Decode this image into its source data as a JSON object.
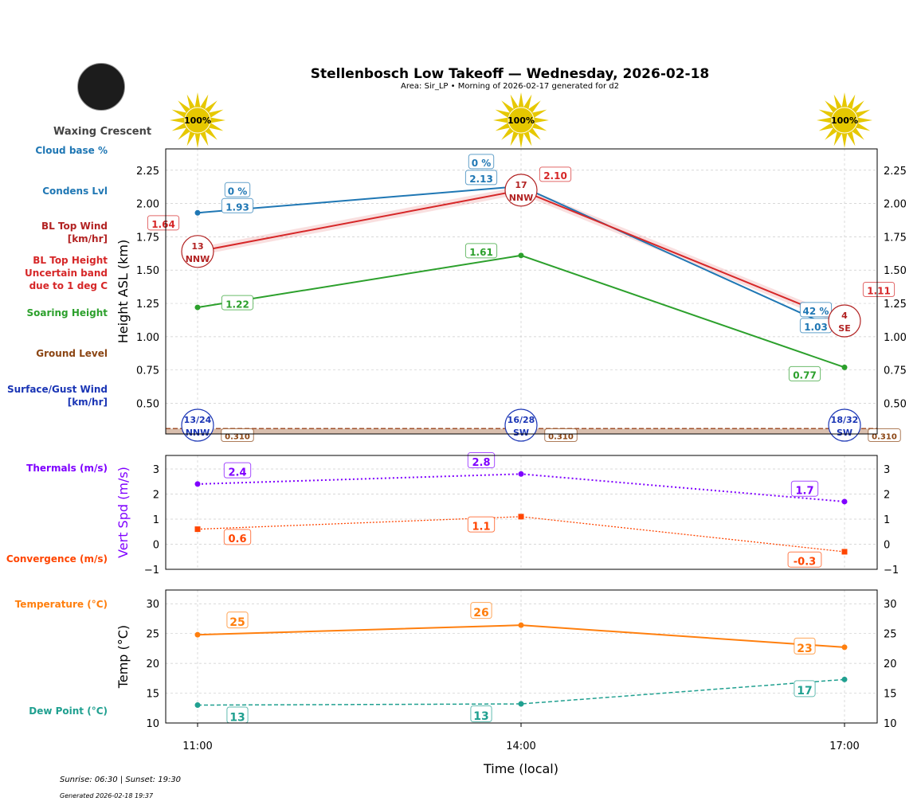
{
  "header": {
    "title": "Stellenbosch Low Takeoff — Wednesday, 2026-02-18",
    "subtitle": "Area: Sir_LP • Morning of 2026-02-17 generated for d2",
    "moon_phase": "Waxing Crescent"
  },
  "left_labels": [
    {
      "text": "Cloud base %",
      "color": "#1f77b4"
    },
    {
      "text": "Condens Lvl",
      "color": "#1f77b4"
    },
    {
      "text": "BL Top Wind\n[km/hr]",
      "color": "#b22222"
    },
    {
      "text": "BL Top Height\nUncertain band\ndue to 1 deg C",
      "color": "#d62728"
    },
    {
      "text": "Soaring Height",
      "color": "#2ca02c"
    },
    {
      "text": "Ground Level",
      "color": "#8b4513"
    },
    {
      "text": "Surface/Gust Wind\n[km/hr]",
      "color": "#1a35b5"
    },
    {
      "text": "Thermals (m/s)",
      "color": "#7f00ff"
    },
    {
      "text": "Convergence (m/s)",
      "color": "#ff4500"
    },
    {
      "text": "Temperature (°C)",
      "color": "#ff7f0e"
    },
    {
      "text": "Dew Point (°C)",
      "color": "#20a090"
    }
  ],
  "footer": {
    "sun": "Sunrise: 06:30 | Sunset: 19:30",
    "generated": "Generated 2026-02-18 19:37"
  },
  "chart_data": [
    {
      "type": "line",
      "panel": "height",
      "ylabel": "Height ASL (km)",
      "xlabel": "",
      "ylim": [
        0.27,
        2.41
      ],
      "yticks": [
        "0.50",
        "0.75",
        "1.00",
        "1.25",
        "1.50",
        "1.75",
        "2.00",
        "2.25"
      ],
      "grid": true,
      "x": [
        "11:00",
        "14:00",
        "17:00"
      ],
      "sun_percent": [
        "100%",
        "100%",
        "100%"
      ],
      "series": [
        {
          "key": "condens",
          "values": [
            1.93,
            2.13,
            1.03
          ],
          "labels": [
            "1.93",
            "2.13",
            "1.03"
          ],
          "color": "#1f77b4"
        },
        {
          "key": "cloud_pct",
          "labels": [
            "0 %",
            "0 %",
            "42 %"
          ],
          "color": "#1f77b4"
        },
        {
          "key": "bl_top",
          "values": [
            1.64,
            2.1,
            1.11
          ],
          "labels": [
            "1.64",
            "2.10",
            "1.11"
          ],
          "band": 0.03,
          "color": "#d62728"
        },
        {
          "key": "soaring",
          "values": [
            1.22,
            1.61,
            0.77
          ],
          "labels": [
            "1.22",
            "1.61",
            "0.77"
          ],
          "color": "#2ca02c"
        },
        {
          "key": "ground",
          "values": [
            0.31,
            0.31,
            0.31
          ],
          "labels": [
            "0.310",
            "0.310",
            "0.310"
          ],
          "color": "#8b4513"
        }
      ],
      "bl_wind": [
        {
          "speed": "13",
          "dir": "NNW"
        },
        {
          "speed": "17",
          "dir": "NNW"
        },
        {
          "speed": "4",
          "dir": "SE"
        }
      ],
      "surface_wind": [
        {
          "speed": "13/24",
          "dir": "NNW"
        },
        {
          "speed": "16/28",
          "dir": "SW"
        },
        {
          "speed": "18/32",
          "dir": "SW"
        }
      ]
    },
    {
      "type": "line",
      "panel": "vertical",
      "ylabel": "Vert Spd (m/s)",
      "ylim": [
        -1,
        3.54
      ],
      "yticks": [
        "−1",
        "0",
        "1",
        "2",
        "3"
      ],
      "grid": true,
      "series": [
        {
          "key": "thermals",
          "values": [
            2.4,
            2.8,
            1.7
          ],
          "labels": [
            "2.4",
            "2.8",
            "1.7"
          ],
          "color": "#7f00ff"
        },
        {
          "key": "convergence",
          "values": [
            0.6,
            1.1,
            -0.3
          ],
          "labels": [
            "0.6",
            "1.1",
            "-0.3"
          ],
          "color": "#ff4500"
        }
      ]
    },
    {
      "type": "line",
      "panel": "temp",
      "ylabel": "Temp (°C)",
      "xlabel": "Time (local)",
      "ylim": [
        10,
        32.3
      ],
      "yticks": [
        "10",
        "15",
        "20",
        "25",
        "30"
      ],
      "xticks": [
        "11:00",
        "14:00",
        "17:00"
      ],
      "grid": true,
      "series": [
        {
          "key": "temperature",
          "values": [
            24.8,
            26.4,
            22.7
          ],
          "labels": [
            "25",
            "26",
            "23"
          ],
          "color": "#ff7f0e"
        },
        {
          "key": "dewpoint",
          "values": [
            13.0,
            13.2,
            17.3
          ],
          "labels": [
            "13",
            "13",
            "17"
          ],
          "color": "#20a090"
        }
      ]
    }
  ]
}
